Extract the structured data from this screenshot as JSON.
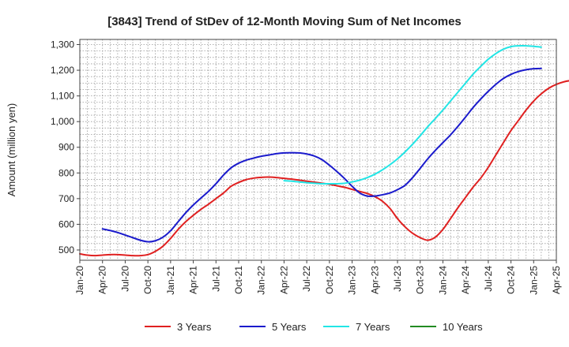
{
  "chart_data": {
    "type": "line",
    "title": "[3843]  Trend of StDev of 12-Month Moving Sum of Net Incomes",
    "xlabel": "",
    "ylabel": "Amount (million yen)",
    "ylim": [
      460,
      1320
    ],
    "yticks": [
      500,
      600,
      700,
      800,
      900,
      1000,
      1100,
      1200,
      1300
    ],
    "ytick_labels": [
      "500",
      "600",
      "700",
      "800",
      "900",
      "1,000",
      "1,100",
      "1,200",
      "1,300"
    ],
    "xticks": [
      "Jan-20",
      "Apr-20",
      "Jul-20",
      "Oct-20",
      "Jan-21",
      "Apr-21",
      "Jul-21",
      "Oct-21",
      "Jan-22",
      "Apr-22",
      "Jul-22",
      "Oct-22",
      "Jan-23",
      "Apr-23",
      "Jul-23",
      "Oct-23",
      "Jan-24",
      "Apr-24",
      "Jul-24",
      "Oct-24",
      "Jan-25",
      "Apr-25"
    ],
    "grid": true,
    "legend_position": "bottom",
    "series": [
      {
        "name": "3 Years",
        "color": "#e02020",
        "start": "Jan-20",
        "values": [
          485,
          480,
          478,
          480,
          482,
          482,
          480,
          478,
          478,
          482,
          495,
          515,
          545,
          580,
          610,
          635,
          658,
          678,
          700,
          722,
          748,
          763,
          774,
          780,
          783,
          784,
          782,
          779,
          776,
          772,
          768,
          764,
          760,
          756,
          750,
          744,
          736,
          728,
          720,
          708,
          690,
          662,
          622,
          590,
          565,
          548,
          538,
          550,
          580,
          622,
          665,
          705,
          745,
          780,
          822,
          870,
          918,
          965,
          1005,
          1045,
          1080,
          1108,
          1130,
          1145,
          1155,
          1160,
          1160
        ]
      },
      {
        "name": "5 Years",
        "color": "#1a1acc",
        "start": "Jan-20",
        "values": [
          null,
          null,
          null,
          582,
          576,
          568,
          558,
          548,
          538,
          532,
          536,
          550,
          575,
          610,
          645,
          675,
          702,
          728,
          758,
          792,
          820,
          838,
          850,
          858,
          865,
          870,
          875,
          878,
          879,
          878,
          874,
          866,
          852,
          830,
          805,
          778,
          748,
          722,
          710,
          710,
          715,
          722,
          735,
          752,
          782,
          818,
          855,
          888,
          918,
          948,
          982,
          1018,
          1055,
          1088,
          1118,
          1145,
          1168,
          1184,
          1195,
          1202,
          1206,
          1207
        ]
      },
      {
        "name": "7 Years",
        "color": "#22e5e5",
        "start": "Jan-20",
        "values": [
          null,
          null,
          null,
          null,
          null,
          null,
          null,
          null,
          null,
          null,
          null,
          null,
          null,
          null,
          null,
          null,
          null,
          null,
          null,
          null,
          null,
          null,
          null,
          null,
          null,
          null,
          null,
          770,
          768,
          765,
          762,
          760,
          758,
          758,
          758,
          760,
          765,
          772,
          782,
          795,
          812,
          832,
          855,
          882,
          912,
          945,
          980,
          1012,
          1045,
          1080,
          1115,
          1150,
          1185,
          1215,
          1243,
          1265,
          1282,
          1292,
          1295,
          1295,
          1293,
          1290
        ]
      },
      {
        "name": "10 Years",
        "color": "#228b22",
        "start": "Jan-20",
        "values": []
      }
    ]
  }
}
